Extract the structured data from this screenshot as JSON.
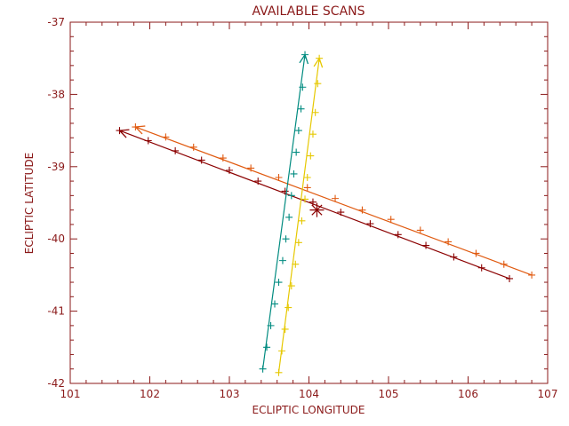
{
  "chart_data": {
    "type": "line",
    "title": "AVAILABLE SCANS",
    "xlabel": "ECLIPTIC LONGITUDE",
    "ylabel": "ECLIPTIC LATITUDE",
    "xlim": [
      101,
      107
    ],
    "ylim": [
      -42,
      -37
    ],
    "xticks": [
      "101",
      "102",
      "103",
      "104",
      "105",
      "106",
      "107"
    ],
    "yticks": [
      "-42",
      "-41",
      "-40",
      "-39",
      "-38",
      "-37"
    ],
    "axis_color": "#8b1a1a",
    "grid": false,
    "series": [
      {
        "color": "#8b0000",
        "start": [
          106.52,
          -40.55
        ],
        "end": [
          101.62,
          -38.5
        ],
        "points": [
          [
            101.62,
            -38.5
          ],
          [
            101.98,
            -38.64
          ],
          [
            102.32,
            -38.78
          ],
          [
            102.65,
            -38.91
          ],
          [
            103.0,
            -39.05
          ],
          [
            103.36,
            -39.2
          ],
          [
            103.7,
            -39.34
          ],
          [
            104.05,
            -39.49
          ],
          [
            104.4,
            -39.63
          ],
          [
            104.77,
            -39.79
          ],
          [
            105.12,
            -39.94
          ],
          [
            105.47,
            -40.09
          ],
          [
            105.82,
            -40.25
          ],
          [
            106.17,
            -40.4
          ],
          [
            106.52,
            -40.55
          ]
        ]
      },
      {
        "color": "#e05a10",
        "start": [
          106.8,
          -40.5
        ],
        "end": [
          101.82,
          -38.45
        ],
        "points": [
          [
            101.82,
            -38.45
          ],
          [
            102.2,
            -38.59
          ],
          [
            102.55,
            -38.73
          ],
          [
            102.92,
            -38.88
          ],
          [
            103.27,
            -39.02
          ],
          [
            103.62,
            -39.15
          ],
          [
            103.98,
            -39.29
          ],
          [
            104.33,
            -39.44
          ],
          [
            104.67,
            -39.6
          ],
          [
            105.03,
            -39.73
          ],
          [
            105.4,
            -39.88
          ],
          [
            105.75,
            -40.04
          ],
          [
            106.1,
            -40.2
          ],
          [
            106.45,
            -40.35
          ],
          [
            106.8,
            -40.5
          ]
        ]
      },
      {
        "color": "#008b80",
        "start": [
          103.42,
          -41.8
        ],
        "end": [
          103.95,
          -37.45
        ],
        "points": [
          [
            103.42,
            -41.8
          ],
          [
            103.47,
            -41.5
          ],
          [
            103.52,
            -41.2
          ],
          [
            103.57,
            -40.9
          ],
          [
            103.62,
            -40.6
          ],
          [
            103.67,
            -40.3
          ],
          [
            103.71,
            -40.0
          ],
          [
            103.75,
            -39.7
          ],
          [
            103.78,
            -39.4
          ],
          [
            103.81,
            -39.1
          ],
          [
            103.84,
            -38.8
          ],
          [
            103.87,
            -38.5
          ],
          [
            103.9,
            -38.2
          ],
          [
            103.92,
            -37.9
          ],
          [
            103.95,
            -37.45
          ]
        ]
      },
      {
        "color": "#e6c800",
        "start": [
          103.62,
          -41.85
        ],
        "end": [
          104.13,
          -37.5
        ],
        "points": [
          [
            103.62,
            -41.85
          ],
          [
            103.66,
            -41.55
          ],
          [
            103.7,
            -41.25
          ],
          [
            103.74,
            -40.95
          ],
          [
            103.78,
            -40.65
          ],
          [
            103.83,
            -40.35
          ],
          [
            103.87,
            -40.05
          ],
          [
            103.91,
            -39.75
          ],
          [
            103.95,
            -39.45
          ],
          [
            103.98,
            -39.15
          ],
          [
            104.02,
            -38.85
          ],
          [
            104.05,
            -38.55
          ],
          [
            104.08,
            -38.25
          ],
          [
            104.11,
            -37.85
          ],
          [
            104.13,
            -37.5
          ]
        ]
      }
    ],
    "marker": {
      "x": 104.1,
      "y": -39.6,
      "symbol": "asterisk",
      "color": "#8b0000"
    }
  }
}
